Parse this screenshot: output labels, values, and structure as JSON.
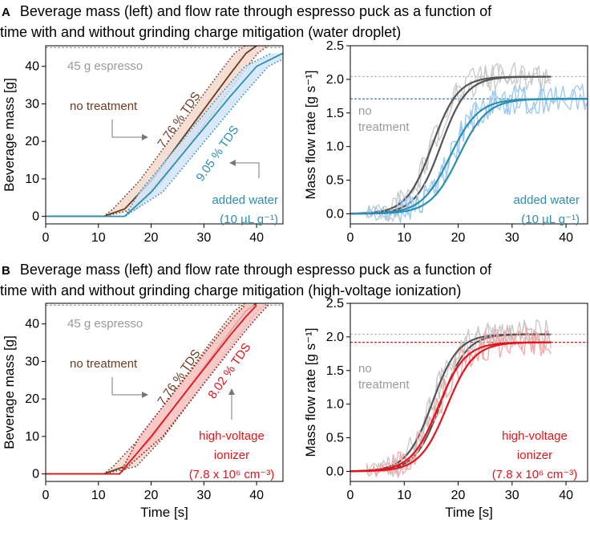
{
  "panels": [
    {
      "tag": "A",
      "line1": "Beverage mass (left) and flow rate through espresso puck as a function of",
      "line2": "time with and without grinding charge mitigation (water droplet)"
    },
    {
      "tag": "B",
      "line1": "Beverage mass (left) and flow rate through espresso puck as a function of",
      "line2": "time with and without grinding charge mitigation (high-voltage ionization)"
    }
  ],
  "colors": {
    "brown": "#6b3a21",
    "blue": "#2b8fb3",
    "blue_light": "#9cc8f0",
    "red": "#e3141b",
    "red_light": "#f5a6a6",
    "gray_dark": "#555555",
    "gray_light": "#c8c8c8",
    "ref_gray": "#9a9a9a"
  },
  "chart_data": [
    {
      "id": "A-mass",
      "type": "line",
      "ylabel": "Beverage mass [g]",
      "xlabel": "",
      "xlim": [
        0,
        45
      ],
      "ylim": [
        -2,
        45.5
      ],
      "xticks": [
        0,
        10,
        20,
        30,
        40
      ],
      "yticks": [
        0,
        10,
        20,
        30,
        40
      ],
      "reference": {
        "value": 45,
        "label": "45 g espresso"
      },
      "series": [
        {
          "name": "no treatment",
          "color": "brown",
          "x": [
            0,
            11,
            15,
            20,
            25,
            30,
            35,
            38,
            40
          ],
          "y": [
            0,
            0,
            2,
            9.5,
            19,
            28.5,
            38,
            43.5,
            45.5
          ],
          "band": 2.2
        },
        {
          "name": "added water (10 µL g⁻¹)",
          "color": "blue",
          "x": [
            0,
            15,
            20,
            25,
            30,
            35,
            40,
            45
          ],
          "y": [
            0,
            0,
            6.5,
            15,
            23.5,
            32,
            40,
            43.5
          ],
          "band": 2.2
        }
      ],
      "annotations": {
        "no_treatment": "no treatment",
        "tds1": "7.76 % TDS",
        "tds2": "9.05 % TDS",
        "treat1": "added water",
        "treat2": "(10 µL g⁻¹)"
      }
    },
    {
      "id": "A-flow",
      "type": "line",
      "ylabel": "Mass flow rate [g s⁻¹]",
      "xlabel": "",
      "xlim": [
        0,
        44
      ],
      "ylim": [
        -0.15,
        2.5
      ],
      "xticks": [
        0,
        10,
        20,
        30,
        40
      ],
      "yticks": [
        0.0,
        0.5,
        1.0,
        1.5,
        2.0,
        2.5
      ],
      "references": [
        {
          "value": 2.04,
          "color": "gray"
        },
        {
          "value": 1.71,
          "color": "blue"
        }
      ],
      "series": [
        {
          "name": "no treatment",
          "color": "gray_dark",
          "type": "sigmoid",
          "max": 2.04,
          "x0": 15.2,
          "k": 0.42,
          "x_end": 37.5
        },
        {
          "name": "added water",
          "color": "blue",
          "type": "sigmoid",
          "max": 1.71,
          "x0": 18.5,
          "k": 0.38,
          "x_end": 44
        }
      ],
      "annotations": {
        "no_treatment_1": "no",
        "no_treatment_2": "treatment",
        "treat1": "added water",
        "treat2": "(10 µL g⁻¹)"
      }
    },
    {
      "id": "B-mass",
      "type": "line",
      "ylabel": "Beverage mass [g]",
      "xlabel": "Time [s]",
      "xlim": [
        0,
        45
      ],
      "ylim": [
        -2,
        45.5
      ],
      "xticks": [
        0,
        10,
        20,
        30,
        40
      ],
      "yticks": [
        0,
        10,
        20,
        30,
        40
      ],
      "reference": {
        "value": 45,
        "label": "45 g espresso"
      },
      "series": [
        {
          "name": "no treatment",
          "color": "brown",
          "x": [
            0,
            11,
            15,
            20,
            25,
            30,
            35,
            38,
            40
          ],
          "y": [
            0,
            0,
            2,
            9.5,
            19,
            28.5,
            38,
            43.5,
            45.5
          ],
          "band": 2.2
        },
        {
          "name": "high-voltage ionizer",
          "color": "red",
          "x": [
            0,
            14,
            20,
            25,
            30,
            35,
            38,
            40
          ],
          "y": [
            0,
            0,
            10,
            19,
            28,
            37,
            42,
            45
          ],
          "band": 2.2
        }
      ],
      "annotations": {
        "no_treatment": "no treatment",
        "tds1": "7.76 % TDS",
        "tds2": "8.02 % TDS",
        "treat1": "high-voltage",
        "treat2": "ionizer",
        "treat3": "(7.8 x 10⁶ cm⁻³)"
      }
    },
    {
      "id": "B-flow",
      "type": "line",
      "ylabel": "Mass flow rate [g s⁻¹]",
      "xlabel": "Time [s]",
      "xlim": [
        0,
        44
      ],
      "ylim": [
        -0.15,
        2.5
      ],
      "xticks": [
        0,
        10,
        20,
        30,
        40
      ],
      "yticks": [
        0.0,
        0.5,
        1.0,
        1.5,
        2.0,
        2.5
      ],
      "references": [
        {
          "value": 2.04,
          "color": "gray"
        },
        {
          "value": 1.92,
          "color": "red"
        }
      ],
      "series": [
        {
          "name": "no treatment",
          "color": "gray_dark",
          "type": "sigmoid",
          "max": 2.04,
          "x0": 15.2,
          "k": 0.42,
          "x_end": 37.5
        },
        {
          "name": "high-voltage ionizer",
          "color": "red",
          "type": "sigmoid",
          "max": 1.92,
          "x0": 16.3,
          "k": 0.4,
          "x_end": 37.5
        }
      ],
      "annotations": {
        "no_treatment_1": "no",
        "no_treatment_2": "treatment",
        "treat1": "high-voltage",
        "treat2": "ionizer",
        "treat3": "(7.8 x 10⁶  cm⁻³)"
      }
    }
  ]
}
